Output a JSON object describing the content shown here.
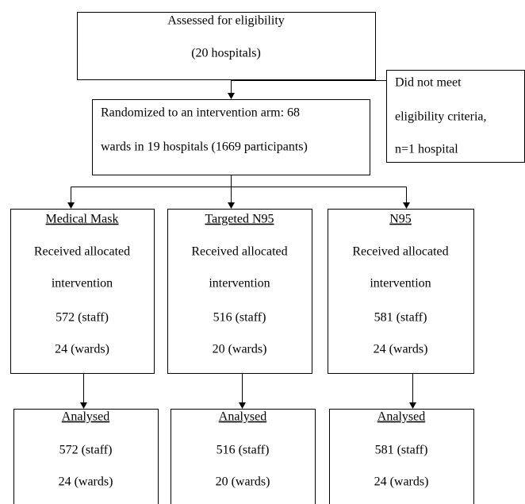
{
  "assessment": {
    "title": "Assessed for eligibility",
    "count": "(20 hospitals)"
  },
  "exclusion": {
    "lines": [
      "Did not meet",
      "eligibility criteria,",
      "n=1 hospital"
    ]
  },
  "randomization": {
    "lines": [
      "Randomized to an intervention arm: 68",
      "wards in 19 hospitals (1669 participants)"
    ]
  },
  "arms": [
    {
      "name": "Medical Mask",
      "allocation": [
        "Received allocated",
        "intervention"
      ],
      "staff": "572 (staff)",
      "wards": "24 (wards)"
    },
    {
      "name": "Targeted N95",
      "allocation": [
        "Received allocated",
        "intervention"
      ],
      "staff": "516 (staff)",
      "wards": "20 (wards)"
    },
    {
      "name": "N95",
      "allocation": [
        "Received allocated",
        "intervention"
      ],
      "staff": "581 (staff)",
      "wards": "24 (wards)"
    }
  ],
  "analysis": [
    {
      "heading": "Analysed",
      "staff": "572 (staff)",
      "wards": "24 (wards)"
    },
    {
      "heading": "Analysed",
      "staff": "516 (staff)",
      "wards": "20 (wards)"
    },
    {
      "heading": "Analysed",
      "staff": "581 (staff)",
      "wards": "24 (wards)"
    }
  ]
}
